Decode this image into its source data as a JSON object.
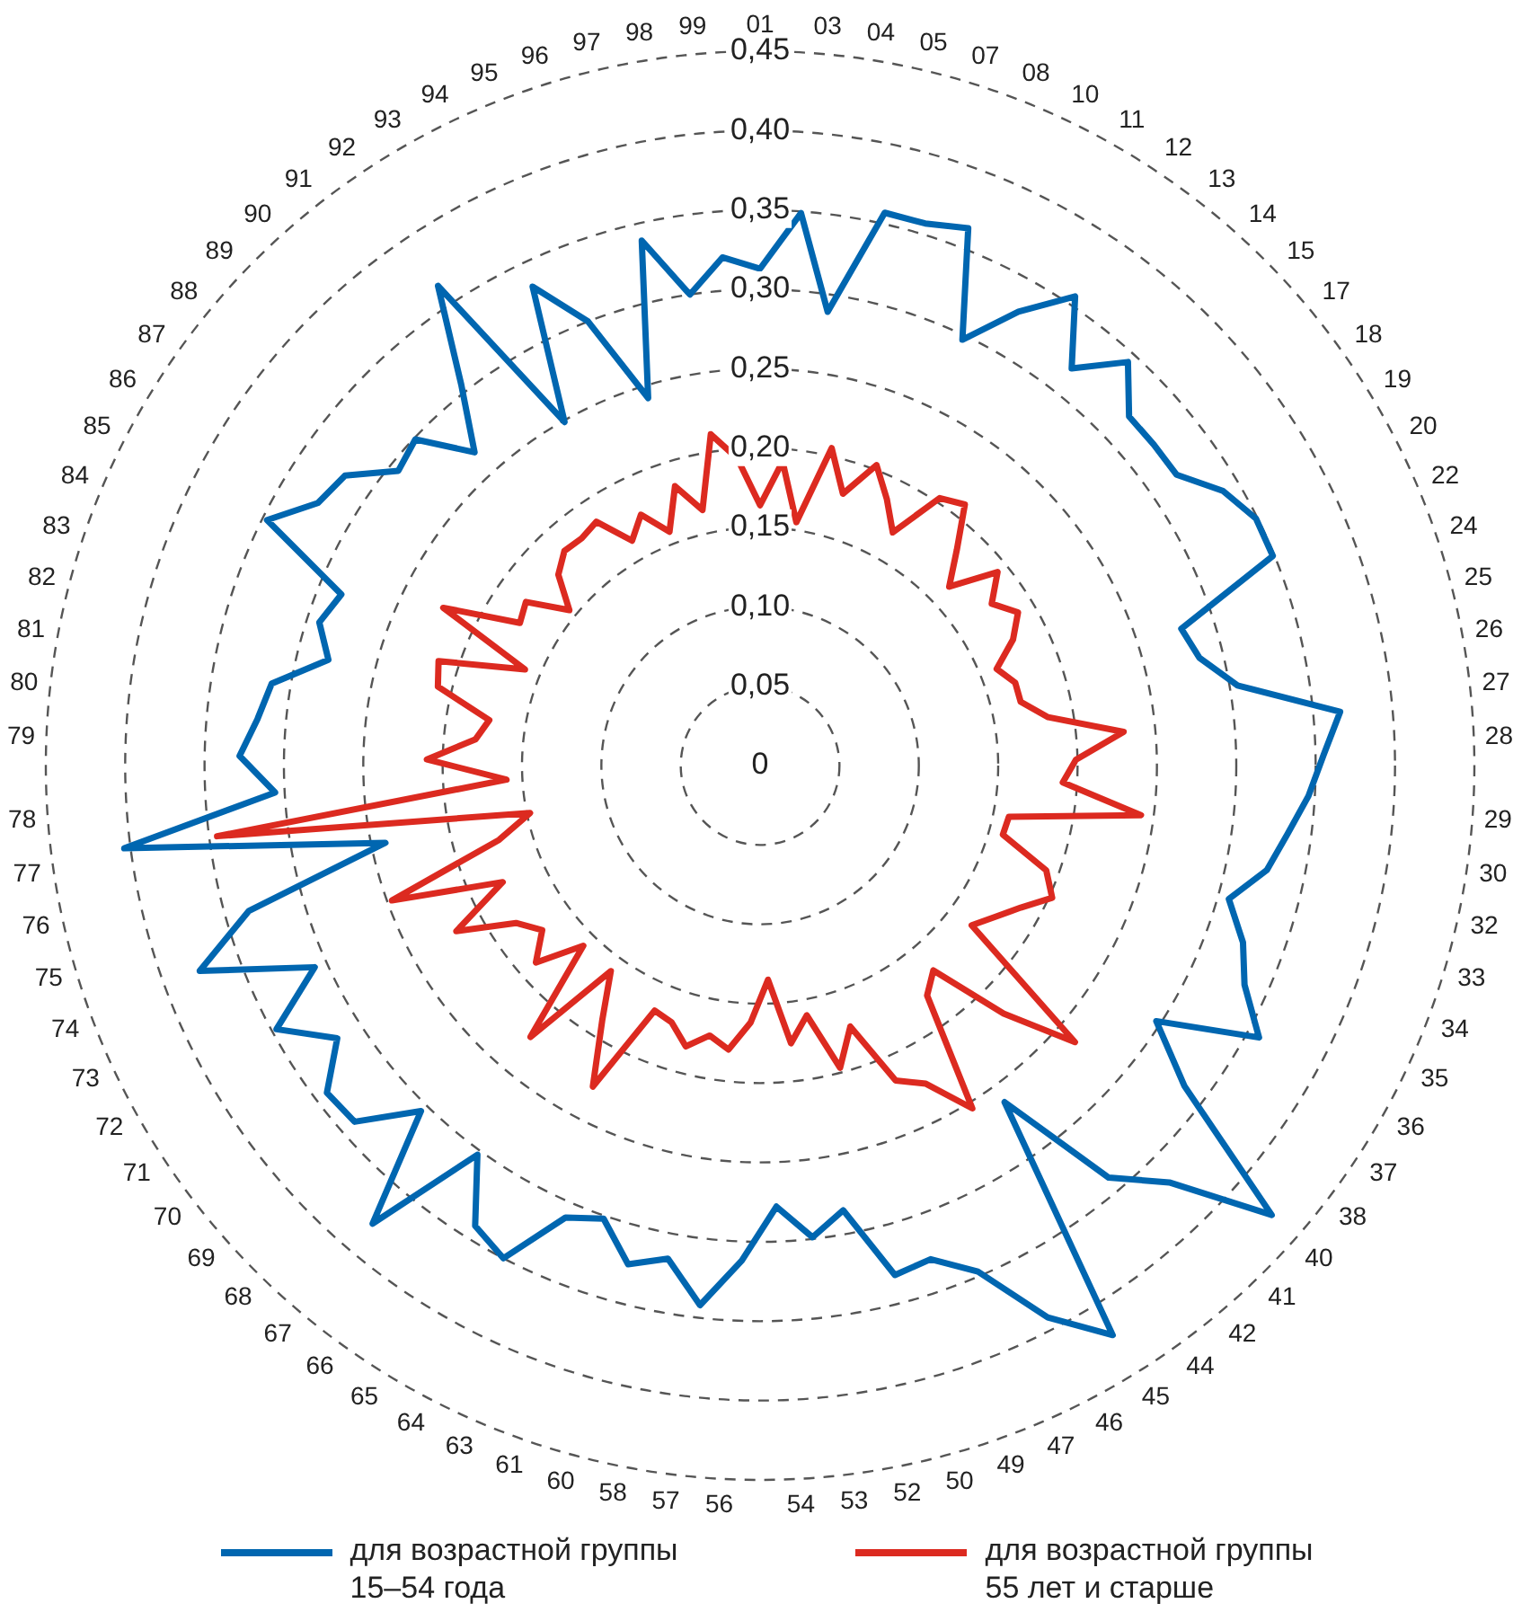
{
  "chart_data": {
    "type": "radar",
    "categories": [
      "01",
      "03",
      "04",
      "05",
      "07",
      "08",
      "10",
      "11",
      "12",
      "13",
      "14",
      "15",
      "17",
      "18",
      "19",
      "20",
      "22",
      "24",
      "25",
      "26",
      "27",
      "28",
      "29",
      "30",
      "32",
      "33",
      "34",
      "35",
      "36",
      "37",
      "38",
      "40",
      "41",
      "42",
      "44",
      "45",
      "46",
      "47",
      "49",
      "50",
      "52",
      "53",
      "54",
      "56",
      "57",
      "58",
      "60",
      "61",
      "63",
      "64",
      "65",
      "66",
      "67",
      "68",
      "69",
      "70",
      "71",
      "72",
      "73",
      "74",
      "75",
      "76",
      "77",
      "78",
      "79",
      "80",
      "81",
      "82",
      "83",
      "84",
      "85",
      "86",
      "87",
      "88",
      "89",
      "90",
      "91",
      "92",
      "93",
      "94",
      "95",
      "96",
      "97",
      "98",
      "99"
    ],
    "series": [
      {
        "name": "для возрастной группы 15–54 года",
        "color": "#0066b0",
        "values": [
          0.313,
          0.349,
          0.289,
          0.357,
          0.357,
          0.363,
          0.297,
          0.329,
          0.356,
          0.318,
          0.344,
          0.32,
          0.32,
          0.32,
          0.339,
          0.349,
          0.349,
          0.279,
          0.285,
          0.305,
          0.367,
          0.355,
          0.346,
          0.335,
          0.326,
          0.307,
          0.324,
          0.335,
          0.358,
          0.297,
          0.335,
          0.429,
          0.368,
          0.34,
          0.262,
          0.422,
          0.392,
          0.347,
          0.329,
          0.332,
          0.285,
          0.299,
          0.278,
          0.312,
          0.342,
          0.316,
          0.325,
          0.302,
          0.31,
          0.35,
          0.341,
          0.303,
          0.378,
          0.305,
          0.34,
          0.342,
          0.317,
          0.347,
          0.308,
          0.376,
          0.335,
          0.241,
          0.404,
          0.306,
          0.328,
          0.318,
          0.312,
          0.28,
          0.292,
          0.285,
          0.347,
          0.324,
          0.319,
          0.294,
          0.299,
          0.267,
          0.305,
          0.364,
          0.249,
          0.334,
          0.3,
          0.242,
          0.339,
          0.3,
          0.321
        ]
      },
      {
        "name": "для возрастной группы 55 лет и старше",
        "color": "#dc2a20",
        "values": [
          0.164,
          0.192,
          0.155,
          0.205,
          0.179,
          0.203,
          0.186,
          0.169,
          0.203,
          0.209,
          0.184,
          0.164,
          0.193,
          0.178,
          0.189,
          0.178,
          0.161,
          0.169,
          0.169,
          0.184,
          0.23,
          0.199,
          0.191,
          0.242,
          0.16,
          0.159,
          0.192,
          0.202,
          0.187,
          0.176,
          0.167,
          0.264,
          0.219,
          0.169,
          0.179,
          0.254,
          0.226,
          0.216,
          0.174,
          0.197,
          0.16,
          0.176,
          0.135,
          0.162,
          0.18,
          0.173,
          0.183,
          0.171,
          0.168,
          0.228,
          0.189,
          0.16,
          0.224,
          0.159,
          0.188,
          0.172,
          0.183,
          0.218,
          0.178,
          0.247,
          0.171,
          0.148,
          0.345,
          0.16,
          0.21,
          0.18,
          0.173,
          0.209,
          0.213,
          0.16,
          0.223,
          0.176,
          0.18,
          0.155,
          0.175,
          0.183,
          0.182,
          0.185,
          0.163,
          0.175,
          0.158,
          0.184,
          0.165,
          0.211,
          0.194
        ]
      }
    ],
    "ylim": [
      0,
      0.45
    ],
    "yticks": [
      0,
      {
        "value": 0.05,
        "label": "0,05"
      },
      {
        "value": 0.1,
        "label": "0,10"
      },
      {
        "value": 0.15,
        "label": "0,15"
      },
      {
        "value": 0.2,
        "label": "0,20"
      },
      {
        "value": 0.25,
        "label": "0,25"
      },
      {
        "value": 0.3,
        "label": "0,30"
      },
      {
        "value": 0.35,
        "label": "0,35"
      },
      {
        "value": 0.4,
        "label": "0,40"
      },
      {
        "value": 0.45,
        "label": "0,45"
      }
    ],
    "grid": true,
    "legend": "bottom",
    "marker": "none",
    "line_style": "solid"
  }
}
